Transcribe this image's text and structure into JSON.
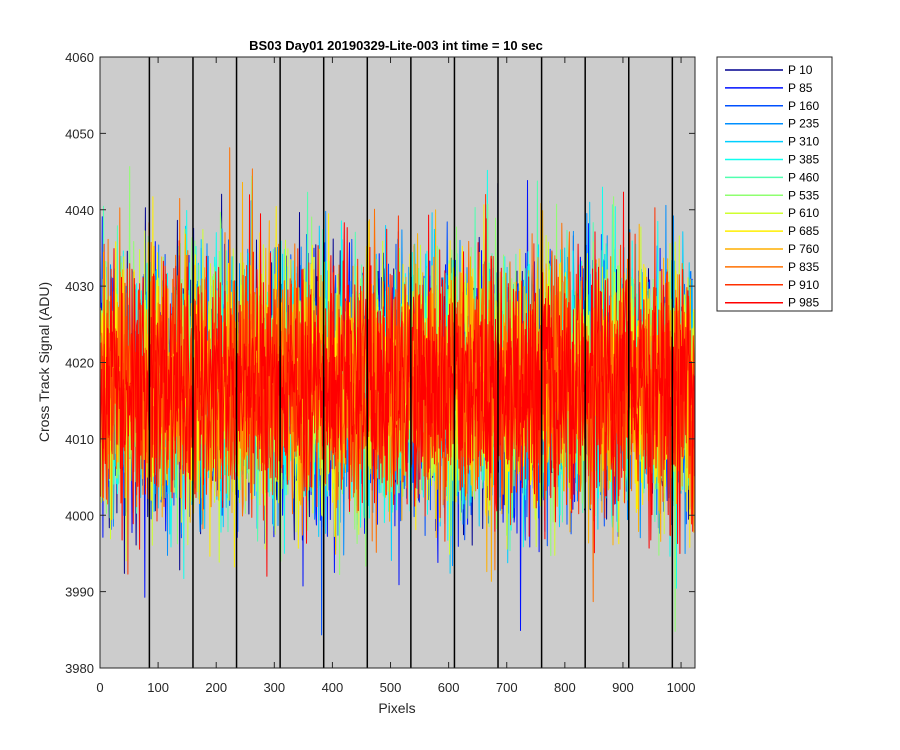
{
  "chart_data": {
    "type": "line",
    "title": "BS03 Day01 20190329-Lite-003 int time = 10 sec",
    "xlabel": "Pixels",
    "ylabel": "Cross Track Signal (ADU)",
    "xlim": [
      0,
      1024
    ],
    "ylim": [
      3980,
      4060
    ],
    "xticks": [
      0,
      100,
      200,
      300,
      400,
      500,
      600,
      700,
      800,
      900,
      1000
    ],
    "yticks": [
      3980,
      3990,
      4000,
      4010,
      4020,
      4030,
      4040,
      4050,
      4060
    ],
    "plot_background": "#cccccc",
    "grid": false,
    "legend_location": "outside-top-right",
    "vertical_markers": [
      85,
      160,
      235,
      310,
      385,
      460,
      535,
      610,
      685,
      760,
      835,
      910,
      985
    ],
    "vertical_marker_color": "#000000",
    "series_stats": {
      "mean": 4017,
      "std": 8,
      "n_points": 1024
    },
    "series": [
      {
        "name": "P 10",
        "color": "#00008f"
      },
      {
        "name": "P 85",
        "color": "#0010ff"
      },
      {
        "name": "P 160",
        "color": "#0050ff"
      },
      {
        "name": "P 235",
        "color": "#008fff"
      },
      {
        "name": "P 310",
        "color": "#00cfff"
      },
      {
        "name": "P 385",
        "color": "#10ffef"
      },
      {
        "name": "P 460",
        "color": "#50ffaf"
      },
      {
        "name": "P 535",
        "color": "#8fff70"
      },
      {
        "name": "P 610",
        "color": "#cfff30"
      },
      {
        "name": "P 685",
        "color": "#ffef00"
      },
      {
        "name": "P 760",
        "color": "#ffaf00"
      },
      {
        "name": "P 835",
        "color": "#ff7000"
      },
      {
        "name": "P 910",
        "color": "#ff3000"
      },
      {
        "name": "P 985",
        "color": "#ff0000"
      }
    ]
  }
}
